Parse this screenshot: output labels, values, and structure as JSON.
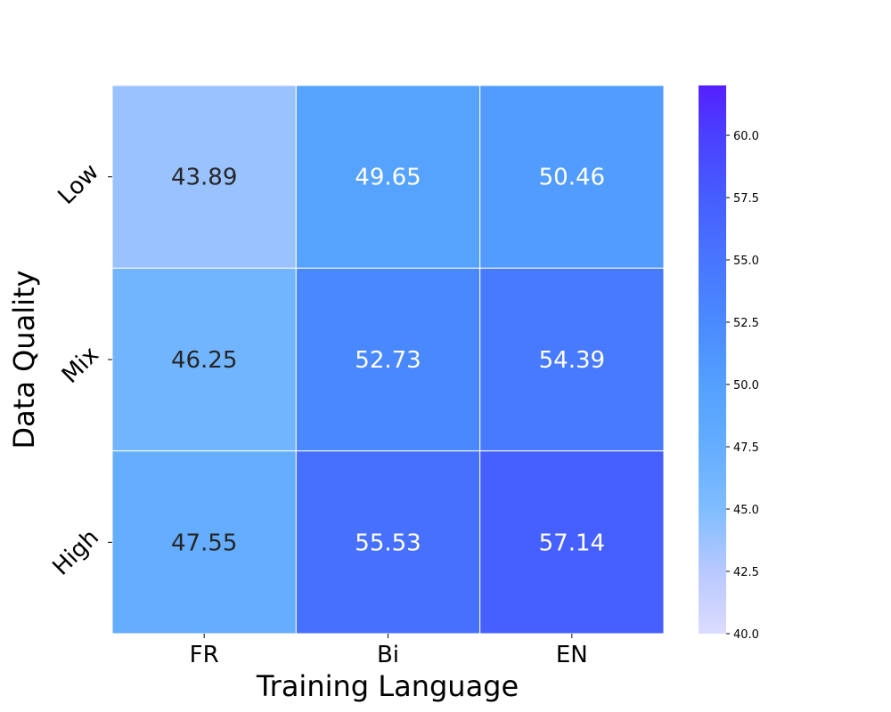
{
  "chart_data": {
    "type": "heatmap",
    "xlabel": "Training Language",
    "ylabel": "Data Quality",
    "x_categories": [
      "FR",
      "Bi",
      "EN"
    ],
    "y_categories": [
      "Low",
      "Mix",
      "High"
    ],
    "values": [
      [
        43.89,
        49.65,
        50.46
      ],
      [
        46.25,
        52.73,
        54.39
      ],
      [
        47.55,
        55.53,
        57.14
      ]
    ],
    "colorbar": {
      "range": [
        40,
        62
      ],
      "ticks": [
        "40.0",
        "42.5",
        "45.0",
        "47.5",
        "50.0",
        "52.5",
        "55.0",
        "57.5",
        "60.0"
      ],
      "colors": [
        {
          "v": 40,
          "c": "#dcdcff"
        },
        {
          "v": 42.5,
          "c": "#b8c8ff"
        },
        {
          "v": 45,
          "c": "#80bdff"
        },
        {
          "v": 47.5,
          "c": "#64adff"
        },
        {
          "v": 50,
          "c": "#54a0ff"
        },
        {
          "v": 52.5,
          "c": "#4a8aff"
        },
        {
          "v": 55,
          "c": "#4875ff"
        },
        {
          "v": 57.5,
          "c": "#465dff"
        },
        {
          "v": 60,
          "c": "#4a40ff"
        },
        {
          "v": 62,
          "c": "#5520ff"
        }
      ]
    },
    "annotation_colors": {
      "dark": "#262626",
      "light": "#ffffff"
    }
  }
}
